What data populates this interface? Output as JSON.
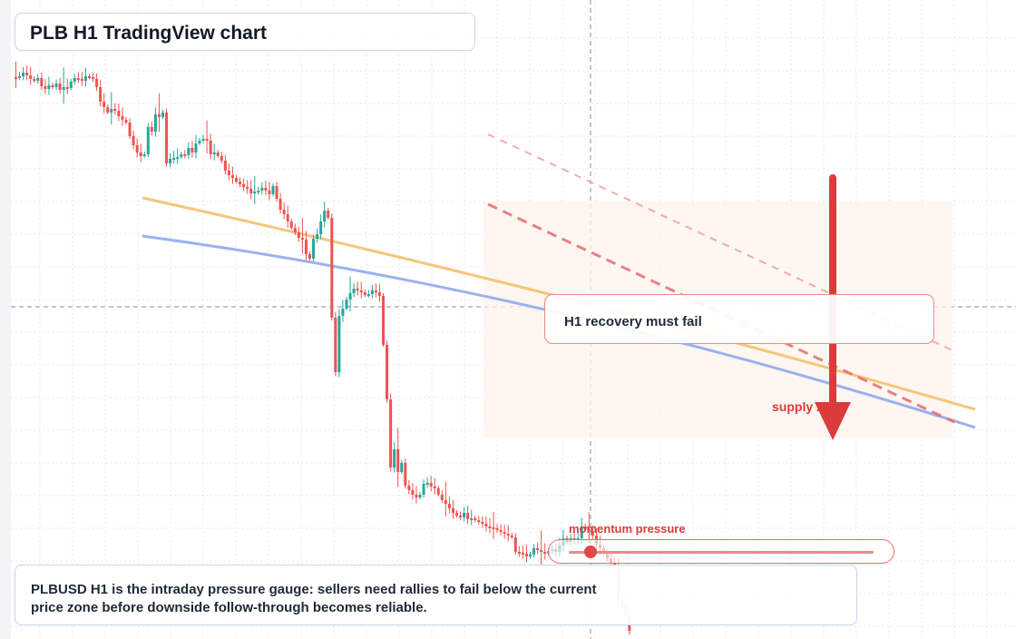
{
  "title": "PLB H1 TradingView chart",
  "callout": "H1 recovery must fail",
  "zone_label": "supply zone",
  "gauge": {
    "label": "momentum pressure",
    "level": 0.07
  },
  "note": "PLBUSD H1 is the intraday pressure gauge: sellers need rallies to fail below the current price zone before downside follow-through becomes reliable.",
  "colors": {
    "bull": "#26a69a",
    "bear": "#ef5350",
    "accent": "#dc3b3b",
    "ma_fast": "#f5c16c",
    "ma_slow": "#8fa8ee",
    "zone": "#fdf3ec"
  },
  "chart_data": {
    "type": "candlestick",
    "title": "PLB H1 TradingView chart",
    "timeframe": "H1",
    "symbol": "PLBUSD",
    "grid": true,
    "y_scale": "price (axis values not printed)",
    "price_level_line": 338,
    "closes": [
      85,
      84,
      80,
      83,
      87,
      89,
      86,
      95,
      98,
      94,
      96,
      92,
      99,
      96,
      97,
      90,
      86,
      87,
      89,
      84,
      85,
      87,
      96,
      112,
      118,
      124,
      120,
      122,
      128,
      132,
      135,
      150,
      160,
      168,
      172,
      170,
      140,
      145,
      126,
      129,
      124,
      180,
      175,
      174,
      173,
      170,
      171,
      163,
      168,
      158,
      155,
      153,
      155,
      170,
      168,
      172,
      177,
      188,
      193,
      196,
      200,
      203,
      206,
      208,
      213,
      211,
      210,
      207,
      210,
      214,
      205,
      219,
      231,
      236,
      244,
      251,
      256,
      262,
      264,
      280,
      285,
      263,
      258,
      244,
      232,
      240,
      350,
      410,
      348,
      340,
      330,
      323,
      318,
      320,
      322,
      325,
      324,
      320,
      322,
      326,
      380,
      440,
      515,
      495,
      520,
      510,
      535,
      540,
      545,
      548,
      545,
      533,
      532,
      536,
      538,
      545,
      551,
      555,
      560,
      565,
      568,
      570,
      565,
      572,
      571,
      573,
      575,
      577,
      580,
      581,
      582,
      584,
      586,
      588,
      590,
      592,
      608,
      609,
      610,
      613,
      611,
      604,
      606,
      608,
      610,
      607,
      605,
      608,
      601,
      593,
      597,
      593,
      595,
      593,
      580,
      583,
      585,
      590,
      600,
      604,
      610,
      615,
      621,
      625,
      660,
      668,
      680,
      695
    ]
  }
}
